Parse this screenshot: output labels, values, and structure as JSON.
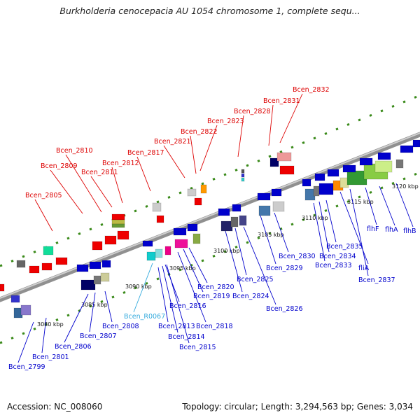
{
  "title": "Burkholderia cenocepacia AU 1054 chromosome 1, complete sequ...",
  "footer": {
    "accession": "Accession: NC_008060",
    "summary": "Topology: circular; Length: 3,294,563 bp; Genes: 3,034"
  },
  "colors": {
    "forward_label": "#dd0000",
    "reverse_label": "#0000cc",
    "rna_label": "#33aadd",
    "backbone": "#909090",
    "strand_dot": "#3a8a1a"
  },
  "kbp_ticks": [
    "3080 kbp",
    "3085 kbp",
    "3090 kbp",
    "3095 kbp",
    "3100 kbp",
    "3105 kbp",
    "3110 kbp",
    "3115 kbp",
    "3120 kbp"
  ],
  "forward_genes": [
    "Bcen_2805",
    "Bcen_2809",
    "Bcen_2810",
    "Bcen_2811",
    "Bcen_2812",
    "Bcen_2817",
    "Bcen_2821",
    "Bcen_2822",
    "Bcen_2823",
    "Bcen_2828",
    "Bcen_2831",
    "Bcen_2832"
  ],
  "reverse_genes": [
    "Bcen_2799",
    "Bcen_2801",
    "Bcen_2806",
    "Bcen_2807",
    "Bcen_2808",
    "Bcen_R0067",
    "Bcen_2813",
    "Bcen_2814",
    "Bcen_2815",
    "Bcen_2816",
    "Bcen_2818",
    "Bcen_2819",
    "Bcen_2820",
    "Bcen_2824",
    "Bcen_2825",
    "Bcen_2826",
    "Bcen_2829",
    "Bcen_2830",
    "Bcen_2833",
    "Bcen_2834",
    "Bcen_2835",
    "fliA",
    "Bcen_2837",
    "flhF",
    "flhA",
    "flhB"
  ]
}
